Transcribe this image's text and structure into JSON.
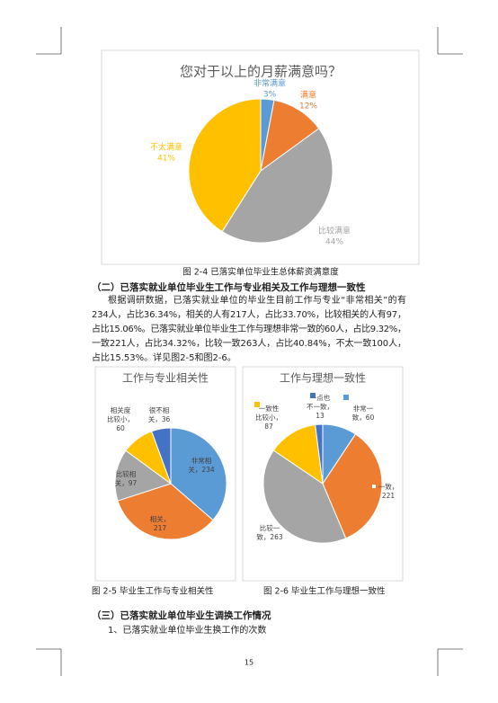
{
  "chart_data": [
    {
      "type": "pie",
      "title": "您对于以上的月薪满意吗？",
      "categories": [
        "非常满意",
        "满意",
        "比较满意",
        "不太满意"
      ],
      "values": [
        3,
        12,
        44,
        41
      ],
      "value_labels": [
        "3%",
        "12%",
        "44%",
        "41%"
      ],
      "colors": [
        "#5b9bd5",
        "#ed7d31",
        "#a5a5a5",
        "#ffc000"
      ]
    },
    {
      "type": "pie",
      "title": "工作与专业相关性",
      "values": [
        234,
        217,
        97,
        60,
        36
      ],
      "value_labels": [
        [
          "非常相",
          "关，234"
        ],
        [
          "相关，",
          "217"
        ],
        [
          "比较相",
          "关，97"
        ],
        [
          "相关度",
          "比较小，",
          "60"
        ],
        [
          "很不相",
          "关，36"
        ]
      ],
      "colors": [
        "#5b9bd5",
        "#ed7d31",
        "#a5a5a5",
        "#ffc000",
        "#4472c4"
      ]
    },
    {
      "type": "pie",
      "title": "工作与理想一致性",
      "values": [
        60,
        221,
        263,
        87,
        13
      ],
      "value_labels": [
        [
          "非常一",
          "致，60"
        ],
        [
          "一致，",
          "221"
        ],
        [
          "比较一",
          "致，263"
        ],
        [
          "一致性",
          "比较小，",
          "87"
        ],
        [
          "一点也",
          "不一致，",
          "13"
        ]
      ],
      "colors": [
        "#5b9bd5",
        "#ed7d31",
        "#a5a5a5",
        "#ffc000",
        "#4472c4"
      ]
    }
  ],
  "captions": [
    "图 2-4  已落实单位毕业生总体薪资满意度",
    "图 2-5  毕业生工作与专业相关性",
    "图 2-6  毕业生工作与理想一致性"
  ],
  "section2": {
    "heading": "（二）已落实就业单位毕业生工作与专业相关及工作与理想一致性",
    "paragraph": [
      "根据调研数据，已落实就业单位的毕业生目前工作与专业“非常相关”的有",
      "234人，占比36.34%，相关的人有217人，占比33.70%，比较相关的人有97，",
      "占比15.06%。已落实就业单位毕业生工作与理想非常一致的60人，占比9.32%，",
      "一致221人，占比34.32%，比较一致263人，占比40.84%，不太一致100人，",
      "占比15.53%。详见图2-5和图2-6。"
    ]
  },
  "section3": {
    "heading": "（三）已落实就业单位毕业生调换工作情况",
    "item": "1、已落实就业单位毕业生换工作的次数"
  },
  "page_number": "15"
}
